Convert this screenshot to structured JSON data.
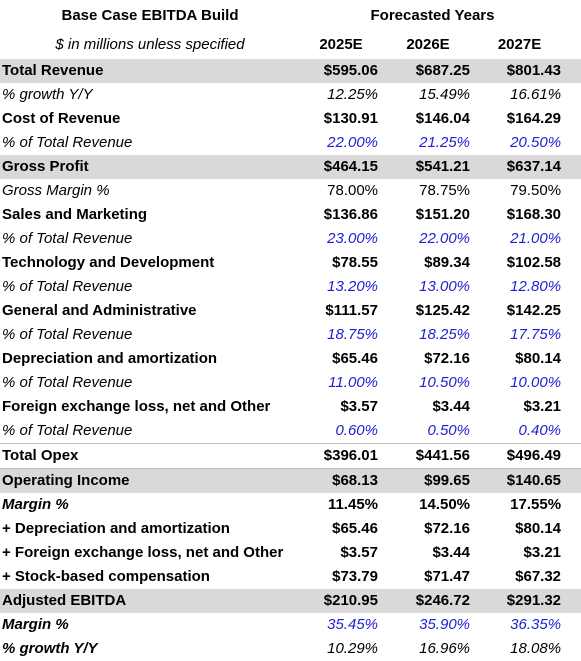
{
  "header": {
    "title": "Base Case EBITDA Build",
    "subtitle": "$ in millions unless specified",
    "group_label": "Forecasted Years",
    "years": [
      "2025E",
      "2026E",
      "2027E"
    ]
  },
  "table": {
    "rows": [
      {
        "label": "Total Revenue",
        "values": [
          "$595.06",
          "$687.25",
          "$801.43"
        ]
      },
      {
        "label": "% growth Y/Y",
        "values": [
          "12.25%",
          "15.49%",
          "16.61%"
        ]
      },
      {
        "label": "Cost of Revenue",
        "values": [
          "$130.91",
          "$146.04",
          "$164.29"
        ]
      },
      {
        "label": "% of Total Revenue",
        "values": [
          "22.00%",
          "21.25%",
          "20.50%"
        ]
      },
      {
        "label": "Gross Profit",
        "values": [
          "$464.15",
          "$541.21",
          "$637.14"
        ]
      },
      {
        "label": "Gross Margin %",
        "values": [
          "78.00%",
          "78.75%",
          "79.50%"
        ]
      },
      {
        "label": "Sales and Marketing",
        "values": [
          "$136.86",
          "$151.20",
          "$168.30"
        ]
      },
      {
        "label": "% of Total Revenue",
        "values": [
          "23.00%",
          "22.00%",
          "21.00%"
        ]
      },
      {
        "label": "Technology and Development",
        "values": [
          "$78.55",
          "$89.34",
          "$102.58"
        ]
      },
      {
        "label": "% of Total Revenue",
        "values": [
          "13.20%",
          "13.00%",
          "12.80%"
        ]
      },
      {
        "label": "General and Administrative",
        "values": [
          "$111.57",
          "$125.42",
          "$142.25"
        ]
      },
      {
        "label": "% of Total Revenue",
        "values": [
          "18.75%",
          "18.25%",
          "17.75%"
        ]
      },
      {
        "label": "Depreciation and amortization",
        "values": [
          "$65.46",
          "$72.16",
          "$80.14"
        ]
      },
      {
        "label": "% of Total Revenue",
        "values": [
          "11.00%",
          "10.50%",
          "10.00%"
        ]
      },
      {
        "label": "Foreign exchange loss, net and Other",
        "values": [
          "$3.57",
          "$3.44",
          "$3.21"
        ]
      },
      {
        "label": "% of Total Revenue",
        "values": [
          "0.60%",
          "0.50%",
          "0.40%"
        ]
      },
      {
        "label": "Total Opex",
        "values": [
          "$396.01",
          "$441.56",
          "$496.49"
        ]
      },
      {
        "label": "Operating Income",
        "values": [
          "$68.13",
          "$99.65",
          "$140.65"
        ]
      },
      {
        "label": "Margin %",
        "values": [
          "11.45%",
          "14.50%",
          "17.55%"
        ]
      },
      {
        "label": "+ Depreciation and amortization",
        "values": [
          "$65.46",
          "$72.16",
          "$80.14"
        ]
      },
      {
        "label": "+ Foreign exchange loss, net and Other",
        "values": [
          "$3.57",
          "$3.44",
          "$3.21"
        ]
      },
      {
        "label": "+ Stock-based compensation",
        "values": [
          "$73.79",
          "$71.47",
          "$67.32"
        ]
      },
      {
        "label": "Adjusted EBITDA",
        "values": [
          "$210.95",
          "$246.72",
          "$291.32"
        ]
      },
      {
        "label": "Margin %",
        "values": [
          "35.45%",
          "35.90%",
          "36.35%"
        ]
      },
      {
        "label": "% growth Y/Y",
        "values": [
          "10.29%",
          "16.96%",
          "18.08%"
        ]
      }
    ]
  }
}
